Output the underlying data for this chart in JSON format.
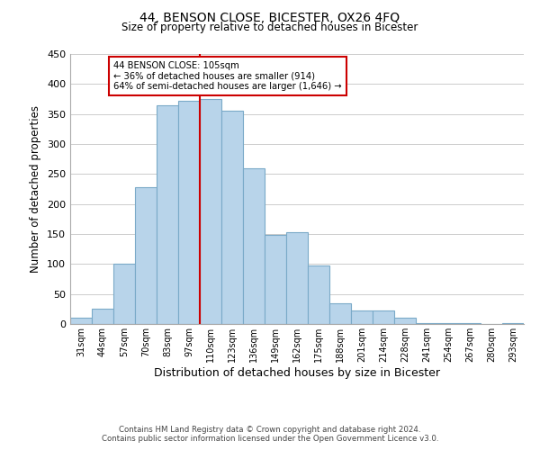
{
  "title": "44, BENSON CLOSE, BICESTER, OX26 4FQ",
  "subtitle": "Size of property relative to detached houses in Bicester",
  "xlabel": "Distribution of detached houses by size in Bicester",
  "ylabel": "Number of detached properties",
  "bar_labels": [
    "31sqm",
    "44sqm",
    "57sqm",
    "70sqm",
    "83sqm",
    "97sqm",
    "110sqm",
    "123sqm",
    "136sqm",
    "149sqm",
    "162sqm",
    "175sqm",
    "188sqm",
    "201sqm",
    "214sqm",
    "228sqm",
    "241sqm",
    "254sqm",
    "267sqm",
    "280sqm",
    "293sqm"
  ],
  "bar_heights": [
    10,
    25,
    100,
    228,
    365,
    372,
    375,
    355,
    260,
    148,
    153,
    97,
    35,
    22,
    22,
    11,
    2,
    2,
    2,
    0,
    2
  ],
  "bar_color": "#b8d4ea",
  "bar_edge_color": "#7aaac8",
  "vline_x": 5.5,
  "vline_color": "#cc0000",
  "annotation_title": "44 BENSON CLOSE: 105sqm",
  "annotation_line1": "← 36% of detached houses are smaller (914)",
  "annotation_line2": "64% of semi-detached houses are larger (1,646) →",
  "annotation_box_color": "#ffffff",
  "annotation_box_edge": "#cc0000",
  "ylim": [
    0,
    450
  ],
  "yticks": [
    0,
    50,
    100,
    150,
    200,
    250,
    300,
    350,
    400,
    450
  ],
  "footer1": "Contains HM Land Registry data © Crown copyright and database right 2024.",
  "footer2": "Contains public sector information licensed under the Open Government Licence v3.0.",
  "bg_color": "#ffffff",
  "grid_color": "#cccccc"
}
